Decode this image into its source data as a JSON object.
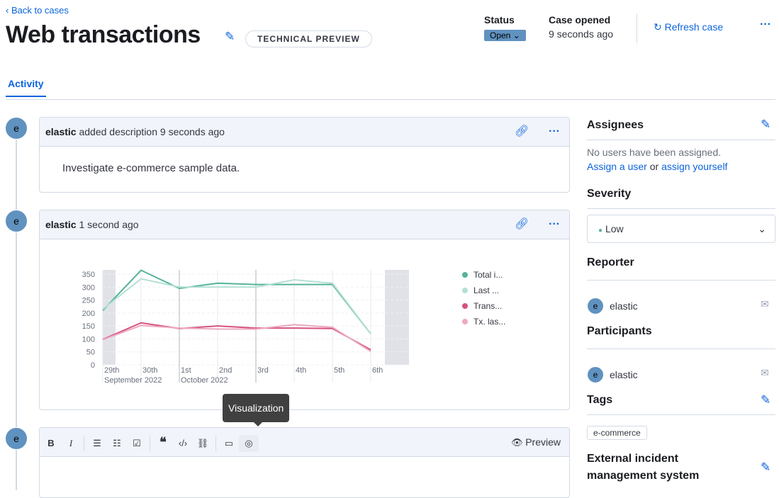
{
  "header": {
    "back": "Back to cases",
    "title": "Web transactions",
    "badge": "TECHNICAL PREVIEW",
    "status_label": "Status",
    "status_value": "Open",
    "opened_label": "Case opened",
    "opened_value": "9 seconds ago",
    "refresh": "Refresh case"
  },
  "tabs": [
    {
      "label": "Activity"
    }
  ],
  "activity": [
    {
      "avatar": "e",
      "user": "elastic",
      "action": "added description 9 seconds ago",
      "body": "Investigate e-commerce sample data."
    },
    {
      "avatar": "e",
      "user": "elastic",
      "action": "1 second ago"
    }
  ],
  "editor": {
    "avatar": "e",
    "tooltip": "Visualization",
    "preview": "Preview",
    "tools": [
      "B",
      "I"
    ]
  },
  "sidebar": {
    "assignees_title": "Assignees",
    "no_users": "No users have been assigned.",
    "assign_user": "Assign a user",
    "or": "or",
    "assign_yourself": "assign yourself",
    "severity_title": "Severity",
    "severity_value": "Low",
    "severity_color": "#54b399",
    "reporter_title": "Reporter",
    "reporter": "elastic",
    "participants_title": "Participants",
    "participant": "elastic",
    "tags_title": "Tags",
    "tags": [
      "e-commerce"
    ],
    "external_title_1": "External incident",
    "external_title_2": "management system"
  },
  "chart_data": {
    "type": "line",
    "categories": [
      "29th",
      "30th",
      "1st",
      "2nd",
      "3rd",
      "4th",
      "5th",
      "6th"
    ],
    "x_sublabels": [
      {
        "at": "29th",
        "text": "September 2022"
      },
      {
        "at": "1st",
        "text": "October 2022"
      }
    ],
    "yticks": [
      0,
      50,
      100,
      150,
      200,
      250,
      300,
      350
    ],
    "ylim": [
      0,
      350
    ],
    "grid": true,
    "legend_placement": "right",
    "series": [
      {
        "name": "Total i...",
        "color": "#54b399",
        "values": [
          210,
          365,
          295,
          315,
          310,
          310,
          310,
          120
        ]
      },
      {
        "name": "Last ...",
        "color": "#b4e0d3",
        "values": [
          215,
          332,
          300,
          300,
          300,
          328,
          315,
          120
        ]
      },
      {
        "name": "Trans...",
        "color": "#d6527f",
        "values": [
          98,
          162,
          140,
          150,
          142,
          142,
          140,
          58
        ]
      },
      {
        "name": "Tx. las...",
        "color": "#eea8c1",
        "values": [
          97,
          152,
          142,
          138,
          138,
          155,
          145,
          52
        ]
      }
    ]
  }
}
